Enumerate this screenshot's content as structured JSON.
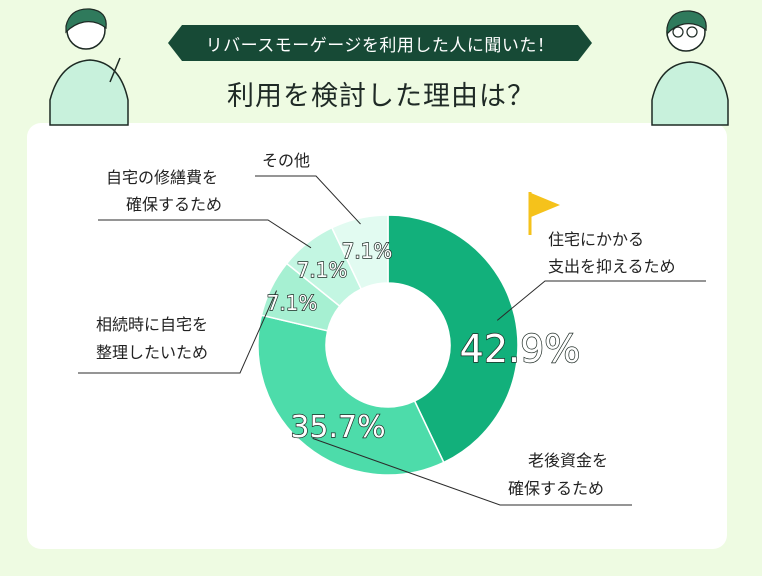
{
  "header": {
    "banner": "リバースモーゲージを利用した人に聞いた！",
    "title": "利用を検討した理由は？"
  },
  "colors": {
    "background": "#eefbe2",
    "banner": "#174a36",
    "card": "#ffffff",
    "flag": "#f5c21b",
    "slices": [
      "#12b07b",
      "#4ddcaa",
      "#a6f0d2",
      "#c3f6e2",
      "#e2fbf1"
    ]
  },
  "chart_data": {
    "type": "pie",
    "donut": true,
    "slices": [
      {
        "label_lines": [
          "住宅にかかる",
          "支出を抑えるため"
        ],
        "value": 42.9,
        "display": "42.9%"
      },
      {
        "label_lines": [
          "老後資金を",
          "確保するため"
        ],
        "value": 35.7,
        "display": "35.7%"
      },
      {
        "label_lines": [
          "相続時に自宅を",
          "整理したいため"
        ],
        "value": 7.1,
        "display": "7.1%"
      },
      {
        "label_lines": [
          "自宅の修繕費を",
          "確保するため"
        ],
        "value": 7.1,
        "display": "7.1%"
      },
      {
        "label_lines": [
          "その他"
        ],
        "value": 7.1,
        "display": "7.1%"
      }
    ]
  }
}
